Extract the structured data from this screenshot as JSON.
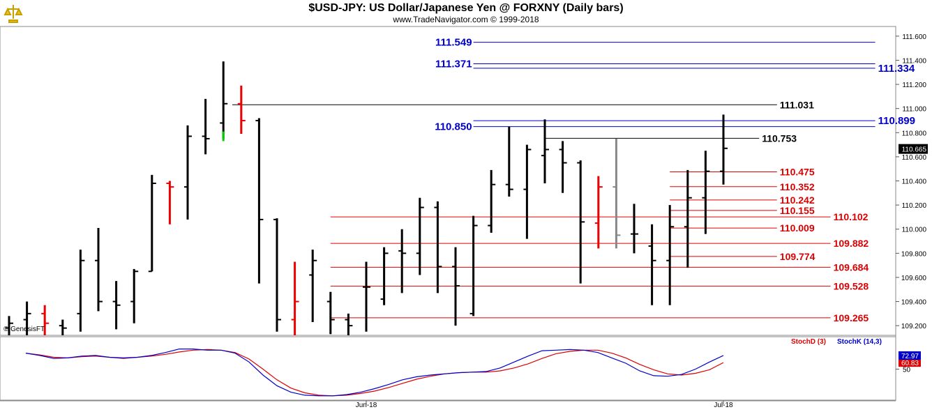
{
  "header": {
    "title": "$USD-JPY:  US Dollar/Japanese Yen @ FORXNY  (Daily bars)",
    "copyright": "www.TradeNavigator.com © 1999-2018"
  },
  "credit": "© GenesisFT",
  "colors": {
    "bar": "#000000",
    "bar_down": "#ee0000",
    "bar_up": "#00cc00",
    "bar_gray": "#888888",
    "blue_level": "#0000cc",
    "red_level": "#dd0000",
    "black_level": "#000000",
    "stoch_d": "#dd0000",
    "stoch_k": "#0000cc"
  },
  "chart_data": [
    {
      "type": "ohlc",
      "ylim": [
        109.12,
        111.68
      ],
      "y_ticks": [
        "111.600",
        "111.400",
        "111.200",
        "111.000",
        "110.800",
        "110.600",
        "110.400",
        "110.200",
        "110.000",
        "109.800",
        "109.600",
        "109.400",
        "109.200"
      ],
      "x_labels": [
        {
          "index": 20,
          "label": "Jun-18"
        },
        {
          "index": 40,
          "label": "Jul-18"
        }
      ],
      "last_price": "110.665",
      "bars": [
        {
          "o": 109.18,
          "h": 109.28,
          "l": 109.12,
          "c": 109.22,
          "color": "bar"
        },
        {
          "o": 109.25,
          "h": 109.4,
          "l": 109.12,
          "c": 109.3,
          "color": "bar"
        },
        {
          "o": 109.3,
          "h": 109.37,
          "l": 109.12,
          "c": 109.22,
          "color": "bar_down"
        },
        {
          "o": 109.2,
          "h": 109.25,
          "l": 109.1,
          "c": 109.18,
          "color": "bar"
        },
        {
          "o": 109.3,
          "h": 109.83,
          "l": 109.15,
          "c": 109.74,
          "color": "bar"
        },
        {
          "o": 109.74,
          "h": 110.01,
          "l": 109.32,
          "c": 109.4,
          "color": "bar"
        },
        {
          "o": 109.4,
          "h": 109.57,
          "l": 109.17,
          "c": 109.37,
          "color": "bar"
        },
        {
          "o": 109.4,
          "h": 109.67,
          "l": 109.22,
          "c": 109.65,
          "color": "bar"
        },
        {
          "o": 109.65,
          "h": 110.45,
          "l": 109.65,
          "c": 110.38,
          "color": "bar"
        },
        {
          "o": 110.38,
          "h": 110.4,
          "l": 110.04,
          "c": 110.35,
          "color": "bar_down"
        },
        {
          "o": 110.35,
          "h": 110.86,
          "l": 110.08,
          "c": 110.77,
          "color": "bar"
        },
        {
          "o": 110.77,
          "h": 111.08,
          "l": 110.62,
          "c": 110.75,
          "color": "bar"
        },
        {
          "o": 110.88,
          "h": 111.39,
          "l": 110.75,
          "c": 111.04,
          "color": "bar"
        },
        {
          "o": 111.04,
          "h": 111.19,
          "l": 110.79,
          "c": 110.9,
          "color": "bar_down"
        },
        {
          "o": 110.9,
          "h": 110.92,
          "l": 109.55,
          "c": 110.08,
          "color": "bar"
        },
        {
          "o": 110.08,
          "h": 110.09,
          "l": 109.15,
          "c": 109.25,
          "color": "bar"
        },
        {
          "o": 109.25,
          "h": 109.73,
          "l": 109.12,
          "c": 109.4,
          "color": "bar_down"
        },
        {
          "o": 109.62,
          "h": 109.83,
          "l": 109.23,
          "c": 109.74,
          "color": "bar"
        },
        {
          "o": 109.4,
          "h": 109.48,
          "l": 109.13,
          "c": 109.25,
          "color": "bar"
        },
        {
          "o": 109.25,
          "h": 109.3,
          "l": 109.1,
          "c": 109.2,
          "color": "bar"
        },
        {
          "o": 109.52,
          "h": 109.73,
          "l": 109.15,
          "c": 109.52,
          "color": "bar"
        },
        {
          "o": 109.42,
          "h": 109.85,
          "l": 109.37,
          "c": 109.8,
          "color": "bar"
        },
        {
          "o": 109.82,
          "h": 110.0,
          "l": 109.47,
          "c": 109.8,
          "color": "bar"
        },
        {
          "o": 109.8,
          "h": 110.26,
          "l": 109.62,
          "c": 110.18,
          "color": "bar"
        },
        {
          "o": 110.18,
          "h": 110.23,
          "l": 109.47,
          "c": 109.69,
          "color": "bar"
        },
        {
          "o": 109.69,
          "h": 109.85,
          "l": 109.2,
          "c": 109.53,
          "color": "bar"
        },
        {
          "o": 109.3,
          "h": 110.11,
          "l": 109.28,
          "c": 110.03,
          "color": "bar"
        },
        {
          "o": 110.03,
          "h": 110.49,
          "l": 109.97,
          "c": 110.37,
          "color": "bar"
        },
        {
          "o": 110.37,
          "h": 110.85,
          "l": 110.27,
          "c": 110.33,
          "color": "bar"
        },
        {
          "o": 110.33,
          "h": 110.7,
          "l": 109.92,
          "c": 110.66,
          "color": "bar"
        },
        {
          "o": 110.61,
          "h": 110.91,
          "l": 110.38,
          "c": 110.66,
          "color": "bar"
        },
        {
          "o": 110.66,
          "h": 110.73,
          "l": 110.3,
          "c": 110.55,
          "color": "bar"
        },
        {
          "o": 110.55,
          "h": 110.57,
          "l": 109.55,
          "c": 110.06,
          "color": "bar"
        },
        {
          "o": 110.05,
          "h": 110.44,
          "l": 109.84,
          "c": 110.35,
          "color": "bar_down"
        },
        {
          "o": 110.35,
          "h": 110.75,
          "l": 109.84,
          "c": 109.95,
          "color": "bar_gray"
        },
        {
          "o": 109.96,
          "h": 110.21,
          "l": 109.8,
          "c": 109.96,
          "color": "bar"
        },
        {
          "o": 109.86,
          "h": 110.04,
          "l": 109.37,
          "c": 109.74,
          "color": "bar"
        },
        {
          "o": 109.74,
          "h": 110.2,
          "l": 109.37,
          "c": 110.02,
          "color": "bar"
        },
        {
          "o": 110.02,
          "h": 110.49,
          "l": 109.68,
          "c": 110.26,
          "color": "bar"
        },
        {
          "o": 110.26,
          "h": 110.65,
          "l": 109.96,
          "c": 110.48,
          "color": "bar"
        },
        {
          "o": 110.48,
          "h": 110.95,
          "l": 110.37,
          "c": 110.67,
          "color": "bar"
        }
      ],
      "levels": [
        {
          "value": 111.549,
          "label": "111.549",
          "color": "blue_level",
          "start": 26,
          "end": 48.5,
          "label_pos": "left",
          "bold": true
        },
        {
          "value": 111.371,
          "label": "111.371",
          "color": "blue_level",
          "start": 26,
          "end": 48.5,
          "label_pos": "left",
          "bold": true
        },
        {
          "value": 111.334,
          "label": "111.334",
          "color": "blue_level",
          "start": 26,
          "end": 48.5,
          "label_pos": "right",
          "bold": true
        },
        {
          "value": 111.031,
          "label": "111.031",
          "color": "black_level",
          "start": 12.5,
          "end": 43,
          "label_pos": "right",
          "bold": true
        },
        {
          "value": 110.899,
          "label": "110.899",
          "color": "blue_level",
          "start": 26,
          "end": 48.5,
          "label_pos": "right",
          "bold": true
        },
        {
          "value": 110.85,
          "label": "110.850",
          "color": "blue_level",
          "start": 26,
          "end": 48.5,
          "label_pos": "left",
          "bold": true
        },
        {
          "value": 110.753,
          "label": "110.753",
          "color": "black_level",
          "start": 30,
          "end": 42,
          "label_pos": "right",
          "bold": true
        },
        {
          "value": 110.475,
          "label": "110.475",
          "color": "red_level",
          "start": 37,
          "end": 43,
          "label_pos": "right",
          "bold": true
        },
        {
          "value": 110.352,
          "label": "110.352",
          "color": "red_level",
          "start": 37,
          "end": 43,
          "label_pos": "right",
          "bold": true
        },
        {
          "value": 110.242,
          "label": "110.242",
          "color": "red_level",
          "start": 37,
          "end": 43,
          "label_pos": "right",
          "bold": true
        },
        {
          "value": 110.155,
          "label": "110.155",
          "color": "red_level",
          "start": 37,
          "end": 43,
          "label_pos": "right",
          "bold": true
        },
        {
          "value": 110.102,
          "label": "110.102",
          "color": "red_level",
          "start": 18,
          "end": 46,
          "label_pos": "right",
          "bold": true
        },
        {
          "value": 110.009,
          "label": "110.009",
          "color": "red_level",
          "start": 37,
          "end": 43,
          "label_pos": "right",
          "bold": true
        },
        {
          "value": 109.882,
          "label": "109.882",
          "color": "red_level",
          "start": 18,
          "end": 46,
          "label_pos": "right",
          "bold": true
        },
        {
          "value": 109.774,
          "label": "109.774",
          "color": "red_level",
          "start": 37,
          "end": 43,
          "label_pos": "right",
          "bold": true
        },
        {
          "value": 109.684,
          "label": "109.684",
          "color": "red_level",
          "start": 18,
          "end": 46,
          "label_pos": "right",
          "bold": true
        },
        {
          "value": 109.528,
          "label": "109.528",
          "color": "red_level",
          "start": 18,
          "end": 46,
          "label_pos": "right",
          "bold": true
        },
        {
          "value": 109.265,
          "label": "109.265",
          "color": "red_level",
          "start": 18,
          "end": 46,
          "label_pos": "right",
          "bold": true
        }
      ]
    },
    {
      "type": "line",
      "ylim": [
        0,
        100
      ],
      "y_ticks": [
        "50"
      ],
      "legend": [
        "StochD (3)",
        "StochK (14,3)"
      ],
      "series": [
        {
          "name": "StochD (3)",
          "color": "stoch_d",
          "last_label": "60.83",
          "values": [
            77,
            74,
            70,
            69,
            71,
            72,
            70,
            68,
            70,
            72,
            75,
            79,
            82,
            83,
            82,
            78,
            67,
            50,
            32,
            18,
            10,
            6,
            5,
            6,
            9,
            13,
            19,
            26,
            33,
            38,
            42,
            44,
            45,
            45,
            47,
            52,
            59,
            68,
            76,
            80,
            82,
            82,
            77,
            69,
            58,
            49,
            42,
            40,
            43,
            49,
            61
          ]
        },
        {
          "name": "StochK (14,3)",
          "color": "stoch_k",
          "last_label": "72.97",
          "values": [
            77,
            73,
            68,
            69,
            72,
            73,
            70,
            69,
            70,
            73,
            78,
            84,
            84,
            82,
            82,
            77,
            62,
            40,
            22,
            11,
            6,
            5,
            5,
            7,
            11,
            17,
            24,
            32,
            37,
            40,
            42,
            44,
            45,
            46,
            52,
            62,
            72,
            81,
            82,
            83,
            82,
            78,
            69,
            60,
            47,
            39,
            38,
            41,
            50,
            62,
            73
          ]
        }
      ]
    }
  ]
}
